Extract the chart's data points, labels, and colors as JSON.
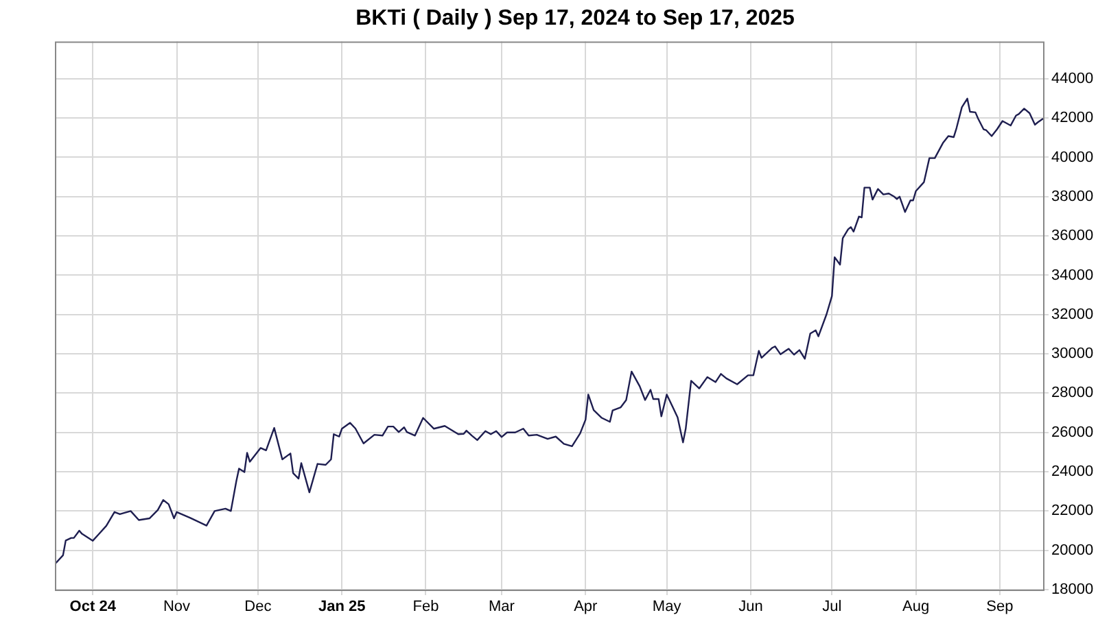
{
  "chart_data": {
    "type": "line",
    "title": "BKTi ( Daily ) Sep 17, 2024 to Sep 17, 2025",
    "x": [
      "2024-09-17",
      "2024-09-20",
      "2024-09-21",
      "2024-09-23",
      "2024-09-24",
      "2024-09-26",
      "2024-09-27",
      "2024-10-01",
      "2024-10-03",
      "2024-10-06",
      "2024-10-09",
      "2024-10-11",
      "2024-10-15",
      "2024-10-18",
      "2024-10-22",
      "2024-10-25",
      "2024-10-27",
      "2024-10-29",
      "2024-10-31",
      "2024-11-01",
      "2024-11-06",
      "2024-11-12",
      "2024-11-15",
      "2024-11-19",
      "2024-11-21",
      "2024-11-23",
      "2024-11-24",
      "2024-11-26",
      "2024-11-27",
      "2024-11-28",
      "2024-12-02",
      "2024-12-04",
      "2024-12-07",
      "2024-12-10",
      "2024-12-13",
      "2024-12-14",
      "2024-12-16",
      "2024-12-17",
      "2024-12-20",
      "2024-12-23",
      "2024-12-26",
      "2024-12-28",
      "2024-12-29",
      "2024-12-31",
      "2025-01-01",
      "2025-01-04",
      "2025-01-06",
      "2025-01-09",
      "2025-01-13",
      "2025-01-16",
      "2025-01-18",
      "2025-01-20",
      "2025-01-22",
      "2025-01-24",
      "2025-01-25",
      "2025-01-28",
      "2025-01-31",
      "2025-02-04",
      "2025-02-08",
      "2025-02-13",
      "2025-02-15",
      "2025-02-16",
      "2025-02-18",
      "2025-02-20",
      "2025-02-23",
      "2025-02-25",
      "2025-02-27",
      "2025-03-01",
      "2025-03-03",
      "2025-03-06",
      "2025-03-09",
      "2025-03-11",
      "2025-03-14",
      "2025-03-18",
      "2025-03-21",
      "2025-03-24",
      "2025-03-27",
      "2025-03-30",
      "2025-04-01",
      "2025-04-02",
      "2025-04-04",
      "2025-04-07",
      "2025-04-10",
      "2025-04-11",
      "2025-04-14",
      "2025-04-16",
      "2025-04-18",
      "2025-04-21",
      "2025-04-23",
      "2025-04-25",
      "2025-04-26",
      "2025-04-28",
      "2025-04-29",
      "2025-05-01",
      "2025-05-03",
      "2025-05-05",
      "2025-05-07",
      "2025-05-08",
      "2025-05-10",
      "2025-05-13",
      "2025-05-16",
      "2025-05-19",
      "2025-05-21",
      "2025-05-23",
      "2025-05-27",
      "2025-05-31",
      "2025-06-02",
      "2025-06-04",
      "2025-06-05",
      "2025-06-09",
      "2025-06-10",
      "2025-06-12",
      "2025-06-15",
      "2025-06-17",
      "2025-06-19",
      "2025-06-21",
      "2025-06-23",
      "2025-06-25",
      "2025-06-26",
      "2025-06-29",
      "2025-07-01",
      "2025-07-02",
      "2025-07-04",
      "2025-07-05",
      "2025-07-07",
      "2025-07-08",
      "2025-07-09",
      "2025-07-11",
      "2025-07-12",
      "2025-07-13",
      "2025-07-15",
      "2025-07-16",
      "2025-07-18",
      "2025-07-20",
      "2025-07-22",
      "2025-07-24",
      "2025-07-25",
      "2025-07-26",
      "2025-07-28",
      "2025-07-30",
      "2025-07-31",
      "2025-08-01",
      "2025-08-04",
      "2025-08-06",
      "2025-08-08",
      "2025-08-11",
      "2025-08-13",
      "2025-08-15",
      "2025-08-16",
      "2025-08-18",
      "2025-08-20",
      "2025-08-21",
      "2025-08-23",
      "2025-08-24",
      "2025-08-26",
      "2025-08-27",
      "2025-08-29",
      "2025-08-31",
      "2025-09-02",
      "2025-09-05",
      "2025-09-07",
      "2025-09-08",
      "2025-09-10",
      "2025-09-12",
      "2025-09-14",
      "2025-09-15",
      "2025-09-17"
    ],
    "series": [
      {
        "color": "#1e1e50",
        "values": [
          19300,
          19750,
          20500,
          20630,
          20630,
          21000,
          20840,
          20490,
          20790,
          21250,
          21950,
          21840,
          22000,
          21540,
          21630,
          22050,
          22560,
          22350,
          21630,
          21950,
          21650,
          21260,
          22000,
          22120,
          22000,
          23510,
          24160,
          23980,
          24960,
          24510,
          25210,
          25090,
          26230,
          24630,
          24930,
          23930,
          23650,
          24440,
          22950,
          24400,
          24350,
          24630,
          25910,
          25790,
          26190,
          26490,
          26200,
          25440,
          25880,
          25840,
          26300,
          26300,
          26020,
          26260,
          26020,
          25840,
          26740,
          26190,
          26330,
          25910,
          25930,
          26090,
          25840,
          25610,
          26070,
          25910,
          26070,
          25770,
          26000,
          26000,
          26190,
          25840,
          25880,
          25670,
          25790,
          25420,
          25300,
          25950,
          26650,
          27930,
          27140,
          26740,
          26540,
          27120,
          27280,
          27650,
          29100,
          28350,
          27650,
          28170,
          27700,
          27700,
          26820,
          27930,
          27350,
          26770,
          25490,
          26190,
          28630,
          28240,
          28820,
          28560,
          28980,
          28750,
          28450,
          28910,
          28910,
          30150,
          29800,
          30310,
          30380,
          29980,
          30260,
          29960,
          30190,
          29750,
          31030,
          31200,
          30890,
          32010,
          32940,
          34920,
          34540,
          35890,
          36340,
          36450,
          36220,
          36990,
          36940,
          38460,
          38460,
          37850,
          38390,
          38110,
          38160,
          38000,
          37880,
          38000,
          37220,
          37810,
          37810,
          38280,
          38740,
          39960,
          39960,
          40730,
          41080,
          41030,
          41480,
          42550,
          42990,
          42320,
          42290,
          41970,
          41430,
          41380,
          41080,
          41430,
          41850,
          41620,
          42130,
          42200,
          42480,
          42250,
          41660,
          41780,
          41970
        ]
      }
    ],
    "xlim": [
      "2024-09-17",
      "2025-09-17"
    ],
    "xticks": [
      {
        "value": "2024-10-01",
        "label": "Oct 24"
      },
      {
        "value": "2024-11-01",
        "label": "Nov"
      },
      {
        "value": "2024-12-01",
        "label": "Dec"
      },
      {
        "value": "2025-01-01",
        "label": "Jan 25"
      },
      {
        "value": "2025-02-01",
        "label": "Feb"
      },
      {
        "value": "2025-03-01",
        "label": "Mar"
      },
      {
        "value": "2025-04-01",
        "label": "Apr"
      },
      {
        "value": "2025-05-01",
        "label": "May"
      },
      {
        "value": "2025-06-01",
        "label": "Jun"
      },
      {
        "value": "2025-07-01",
        "label": "Jul"
      },
      {
        "value": "2025-08-01",
        "label": "Aug"
      },
      {
        "value": "2025-09-01",
        "label": "Sep"
      }
    ],
    "ylim": [
      18000,
      45900
    ],
    "yticks": [
      18000,
      20000,
      22000,
      24000,
      26000,
      28000,
      30000,
      32000,
      34000,
      36000,
      38000,
      40000,
      42000,
      44000
    ],
    "grid": true,
    "legend": false,
    "marker": "none",
    "line_style": "solid"
  }
}
